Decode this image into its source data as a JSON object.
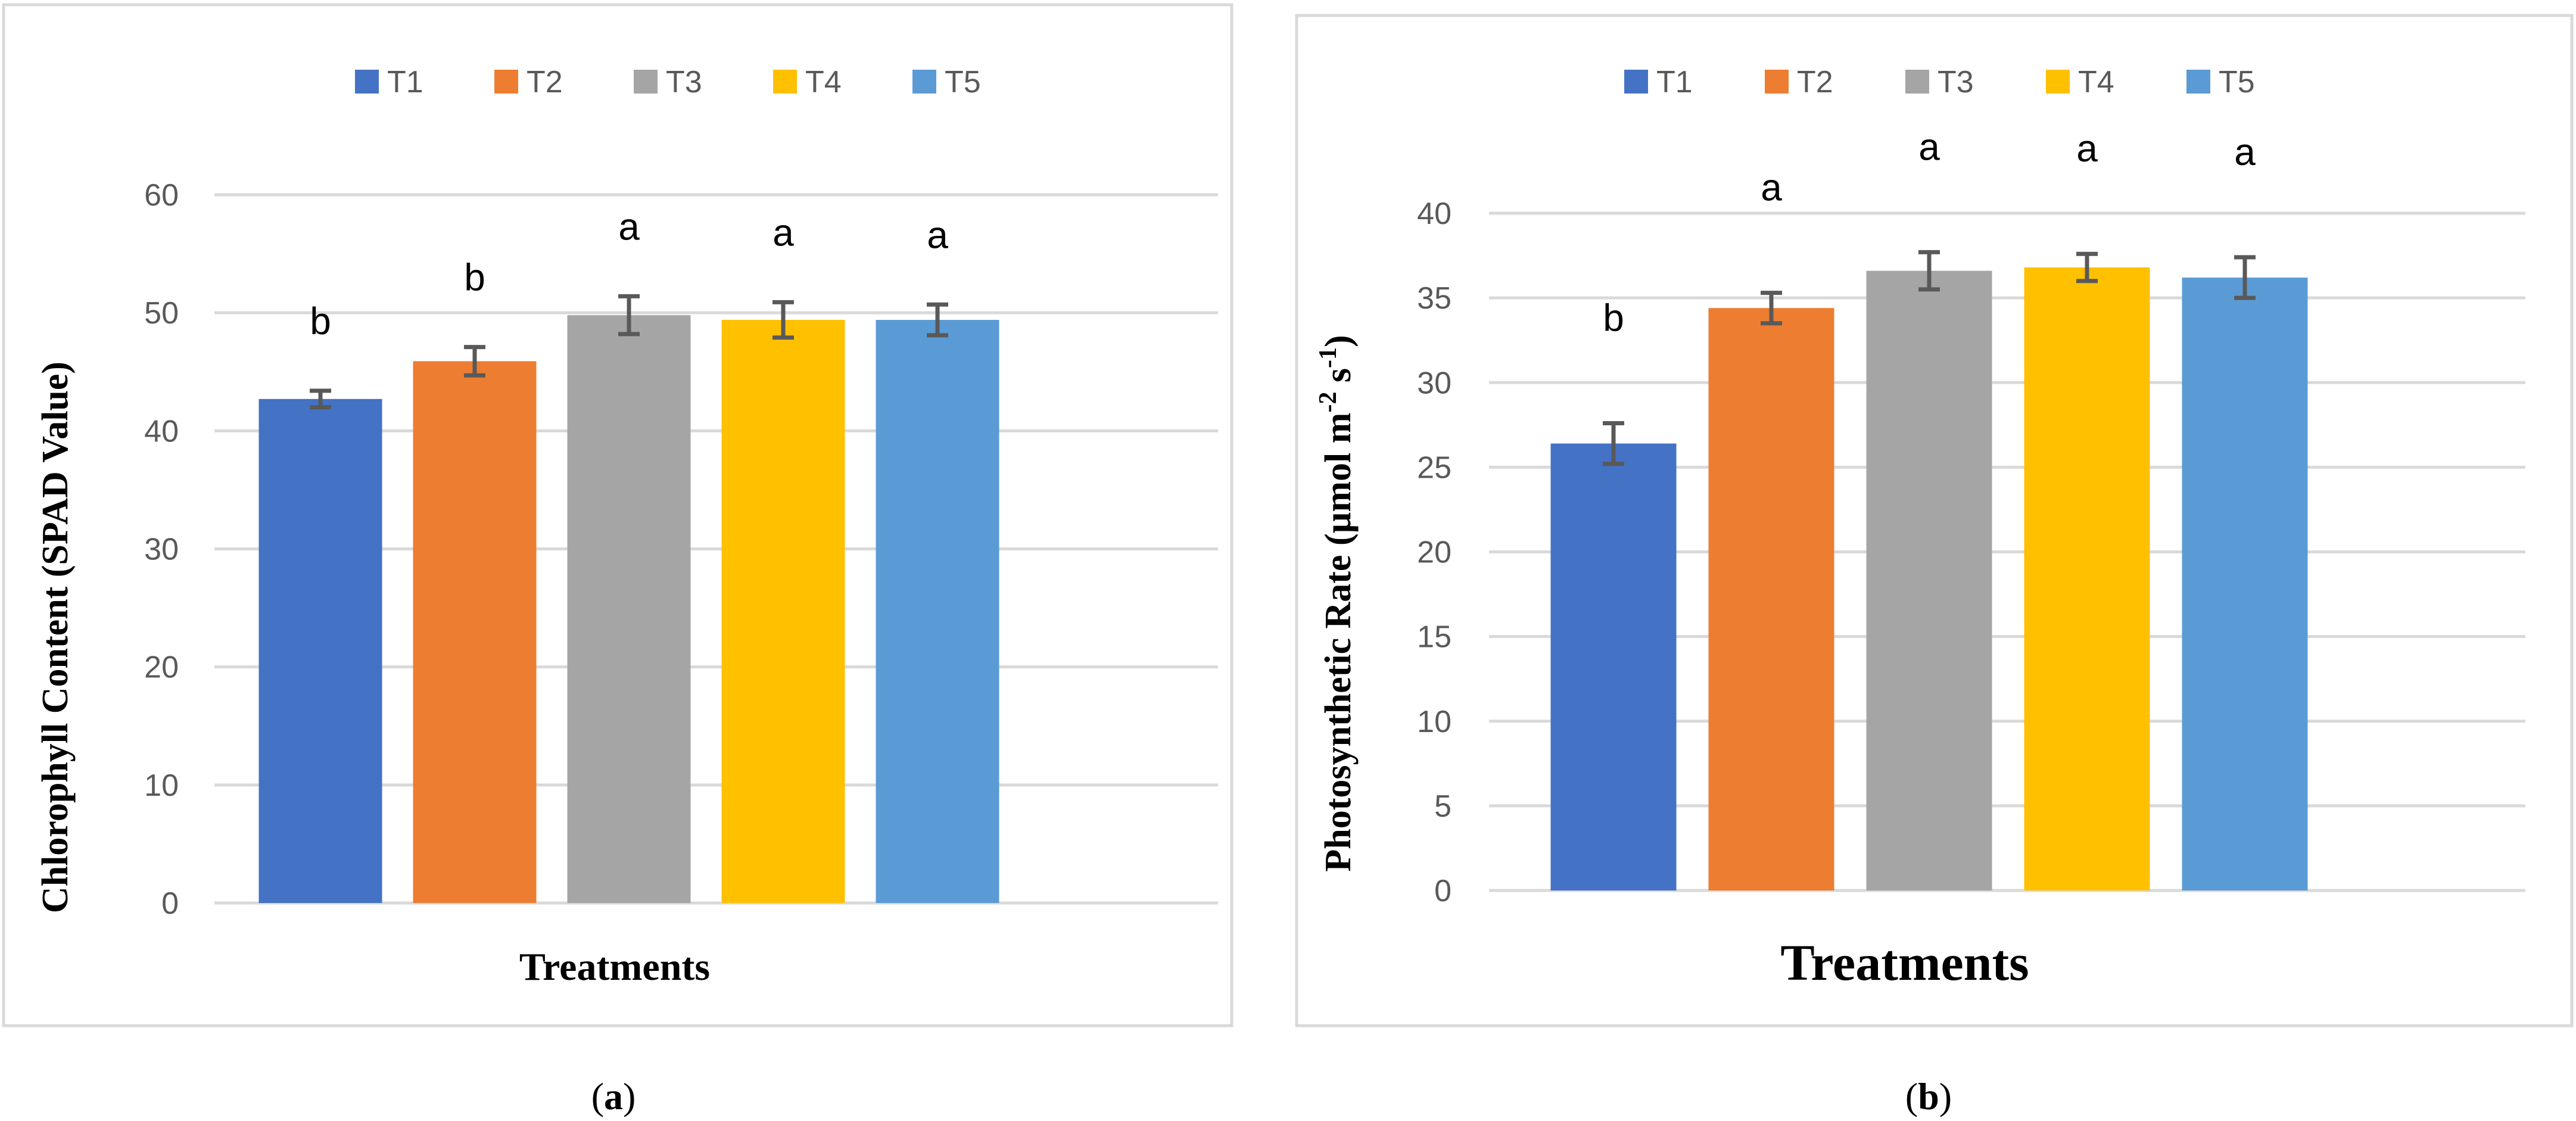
{
  "colors": {
    "series": [
      "#4472c4",
      "#ed7d31",
      "#a5a5a5",
      "#ffc000",
      "#5b9bd5"
    ],
    "grid": "#d9d9d9",
    "frame": "#d9d9d9",
    "error_bar": "#595959",
    "text": "#595959",
    "title_text": "#000000"
  },
  "chart_data": [
    {
      "type": "bar",
      "panel_label": "(a)",
      "panel_letter": "a",
      "categories": [
        "T1",
        "T2",
        "T3",
        "T4",
        "T5"
      ],
      "legend": [
        "T1",
        "T2",
        "T3",
        "T4",
        "T5"
      ],
      "values": [
        42.7,
        45.9,
        49.8,
        49.4,
        49.4
      ],
      "errors": [
        0.7,
        1.2,
        1.6,
        1.5,
        1.3
      ],
      "significance": [
        "b",
        "b",
        "a",
        "a",
        "a"
      ],
      "xlabel": "Treatments",
      "ylabel": "Chlorophyll Content (SPAD Value)",
      "ylim": [
        0,
        60
      ],
      "yticks": [
        0,
        10,
        20,
        30,
        40,
        50,
        60
      ],
      "ytick_labels": [
        "0",
        "10",
        "20",
        "30",
        "40",
        "50",
        "60"
      ],
      "grid": true,
      "legend_position": "top"
    },
    {
      "type": "bar",
      "panel_label": "(b)",
      "panel_letter": "b",
      "categories": [
        "T1",
        "T2",
        "T3",
        "T4",
        "T5"
      ],
      "legend": [
        "T1",
        "T2",
        "T3",
        "T4",
        "T5"
      ],
      "values": [
        26.4,
        34.4,
        36.6,
        36.8,
        36.2
      ],
      "errors": [
        1.2,
        0.9,
        1.1,
        0.8,
        1.2
      ],
      "significance": [
        "b",
        "a",
        "a",
        "a",
        "a"
      ],
      "xlabel": "Treatments",
      "ylabel": "Photosynthetic Rate (µmol m",
      "ylabel_sup1": "-2",
      "ylabel_mid": " s",
      "ylabel_sup2": "-1",
      "ylabel_end": ")",
      "ylim": [
        0,
        40
      ],
      "yticks": [
        0,
        5,
        10,
        15,
        20,
        25,
        30,
        35,
        40
      ],
      "ytick_labels": [
        "0",
        "5",
        "10",
        "15",
        "20",
        "25",
        "30",
        "35",
        "40"
      ],
      "grid": true,
      "legend_position": "top"
    }
  ]
}
